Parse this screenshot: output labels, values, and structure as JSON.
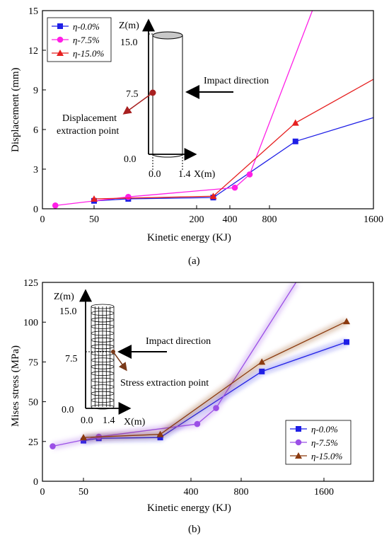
{
  "chart_data": [
    {
      "type": "line",
      "panel_label": "(a)",
      "xlabel": "Kinetic energy (KJ)",
      "ylabel": "Displacement (mm)",
      "x_ticks": [
        "0",
        "50",
        "200",
        "400",
        "800",
        "1600"
      ],
      "y_ticks": [
        "0",
        "3",
        "6",
        "9",
        "12",
        "15"
      ],
      "ylim": [
        0,
        15
      ],
      "x_tick_values": [
        0,
        50,
        200,
        400,
        800,
        1600
      ],
      "series": [
        {
          "name": "η-0.0%",
          "color": "#1f1fe6",
          "marker": "square",
          "x": [
            50,
            100,
            300,
            1000
          ],
          "y": [
            0.6,
            0.75,
            0.85,
            5.1
          ],
          "extend_to": [
            1600,
            6.9
          ]
        },
        {
          "name": "η-7.5%",
          "color": "#ff1fe6",
          "marker": "circle",
          "x": [
            12.5,
            100,
            450,
            600
          ],
          "y": [
            0.25,
            0.9,
            1.6,
            2.6
          ],
          "extend_to": [
            1130,
            15
          ]
        },
        {
          "name": "η-15.0%",
          "color": "#e61f1f",
          "marker": "triangle",
          "x": [
            50,
            300,
            1000
          ],
          "y": [
            0.75,
            0.95,
            6.5
          ],
          "extend_to": [
            1600,
            9.8
          ]
        }
      ],
      "legend_position": "top-left",
      "inset": {
        "z_label": "Z(m)",
        "x_label": "X(m)",
        "z_ticks": [
          "15.0",
          "7.5",
          "0.0"
        ],
        "x_ticks": [
          "0.0",
          "1.4"
        ],
        "impact_text": "Impact direction",
        "point_text_1": "Displacement",
        "point_text_2": "extraction point"
      }
    },
    {
      "type": "line",
      "panel_label": "(b)",
      "xlabel": "Kinetic energy (KJ)",
      "ylabel": "Mises stress (MPa)",
      "x_ticks": [
        "0",
        "50",
        "400",
        "800",
        "1600"
      ],
      "y_ticks": [
        "0",
        "25",
        "50",
        "75",
        "100",
        "125"
      ],
      "ylim": [
        0,
        125
      ],
      "x_tick_values": [
        0,
        50,
        400,
        800,
        1600
      ],
      "series": [
        {
          "name": "η-0.0%",
          "color": "#1f1fe6",
          "marker": "square",
          "x": [
            50,
            100,
            300,
            1000,
            2000
          ],
          "y": [
            25.5,
            27,
            27.5,
            69,
            87.5
          ]
        },
        {
          "name": "η-7.5%",
          "color": "#9b4fe6",
          "marker": "circle",
          "x": [
            12.5,
            100,
            450,
            600
          ],
          "y": [
            22,
            28,
            36,
            46
          ],
          "extend_to": [
            1330,
            125
          ]
        },
        {
          "name": "η-15.0%",
          "color": "#8b3a0f",
          "marker": "triangle",
          "x": [
            50,
            300,
            1000,
            2000
          ],
          "y": [
            27.5,
            29.5,
            75,
            100.5
          ]
        }
      ],
      "legend_position": "bottom-right",
      "inset": {
        "z_label": "Z(m)",
        "x_label": "X(m)",
        "z_ticks": [
          "15.0",
          "7.5",
          "0.0"
        ],
        "x_ticks": [
          "0.0",
          "1.4"
        ],
        "impact_text": "Impact direction",
        "point_text": "Stress extraction point"
      }
    }
  ]
}
